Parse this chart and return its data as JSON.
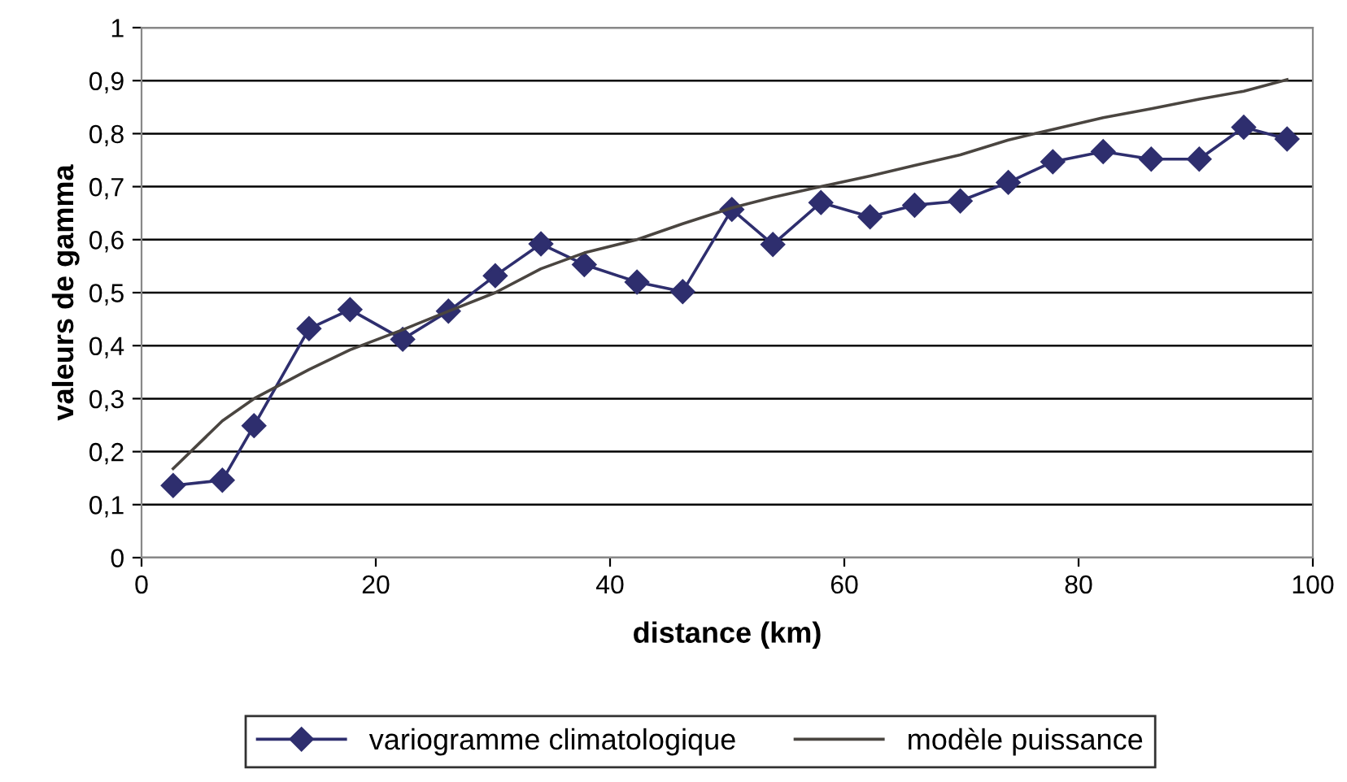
{
  "chart_data": {
    "type": "line",
    "xlabel": "distance (km)",
    "ylabel": "valeurs de gamma",
    "xlim": [
      0,
      100
    ],
    "xticks": [
      0,
      20,
      40,
      60,
      80,
      100
    ],
    "ylim": [
      0,
      1
    ],
    "yticks": [
      0,
      {
        "value": 0.1,
        "label": "0,1"
      },
      {
        "value": 0.2,
        "label": "0,2"
      },
      {
        "value": 0.3,
        "label": "0,3"
      },
      {
        "value": 0.4,
        "label": "0,4"
      },
      {
        "value": 0.5,
        "label": "0,5"
      },
      {
        "value": 0.6,
        "label": "0,6"
      },
      {
        "value": 0.7,
        "label": "0,7"
      },
      {
        "value": 0.8,
        "label": "0,8"
      },
      {
        "value": 0.9,
        "label": "0,9"
      },
      1
    ],
    "grid": "y",
    "legend": "bottom",
    "series": [
      {
        "name": "variogramme climatologique",
        "color": "#2e2e6e",
        "marker": "diamond",
        "x": [
          2.7,
          6.9,
          9.6,
          14.3,
          17.8,
          22.3,
          26.2,
          30.2,
          34.1,
          37.8,
          42.3,
          46.2,
          50.4,
          53.9,
          58.0,
          62.2,
          66.0,
          69.9,
          74.0,
          77.8,
          82.1,
          86.2,
          90.3,
          94.1,
          97.8
        ],
        "values": [
          0.136,
          0.146,
          0.249,
          0.432,
          0.468,
          0.412,
          0.465,
          0.532,
          0.592,
          0.553,
          0.52,
          0.502,
          0.657,
          0.591,
          0.67,
          0.643,
          0.665,
          0.673,
          0.708,
          0.747,
          0.766,
          0.752,
          0.752,
          0.812,
          0.79
        ]
      },
      {
        "name": "modèle puissance",
        "color": "#4a4540",
        "marker": "none",
        "x": [
          2.7,
          6.9,
          9.6,
          14.3,
          17.8,
          22.3,
          26.2,
          30.2,
          34.1,
          37.8,
          42.3,
          46.2,
          50.4,
          53.9,
          58.0,
          62.2,
          66.0,
          69.9,
          74.0,
          77.8,
          82.1,
          86.2,
          90.3,
          94.1,
          97.8
        ],
        "values": [
          0.168,
          0.258,
          0.3,
          0.355,
          0.392,
          0.43,
          0.465,
          0.5,
          0.545,
          0.575,
          0.6,
          0.63,
          0.66,
          0.68,
          0.7,
          0.72,
          0.74,
          0.76,
          0.788,
          0.808,
          0.83,
          0.847,
          0.865,
          0.88,
          0.902
        ]
      }
    ]
  }
}
